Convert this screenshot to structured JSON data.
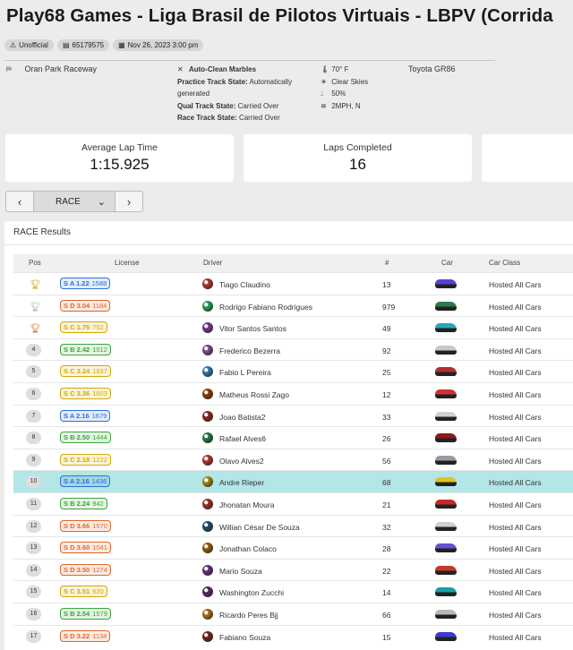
{
  "title": "Play68 Games - Liga Brasil de Pilotos Virtuais - LBPV (Corrida",
  "badges": {
    "status": "Unofficial",
    "id": "65179575",
    "date": "Nov 26, 2023 3:00 pm"
  },
  "info": {
    "track": "Oran Park Raceway",
    "marbles": "Auto-Clean Marbles",
    "practice_label": "Practice Track State:",
    "practice_value": "Automatically generated",
    "practice_value_l1": "Automatically",
    "practice_value_l2": "generated",
    "qual_label": "Qual Track State:",
    "qual_value": "Carried Over",
    "race_label": "Race Track State:",
    "race_value": "Carried Over",
    "temp": "70° F",
    "sky": "Clear Skies",
    "humidity": "50%",
    "wind": "2MPH, N",
    "car": "Toyota GR86"
  },
  "cards": {
    "avg_label": "Average Lap Time",
    "avg_value": "1:15.925",
    "laps_label": "Laps Completed",
    "laps_value": "16"
  },
  "nav": {
    "prev": "<",
    "session": "RACE",
    "next": ">"
  },
  "results": {
    "title": "RACE Results",
    "columns": {
      "pos": "Pos",
      "license": "License",
      "driver": "Driver",
      "num": "#",
      "car": "Car",
      "car_class": "Car Class"
    },
    "rows": [
      {
        "pos": "1",
        "trophy": "gold",
        "lic_class": "A 1.22",
        "lic_ir": "1588",
        "lic_color": "#2e6fd8",
        "driver": "Tiago Claudino",
        "num": "13",
        "car_color": "#5a3fd8",
        "avatar": "#c0392b",
        "car_class": "Hosted All Cars"
      },
      {
        "pos": "2",
        "trophy": "silver",
        "lic_class": "D 3.04",
        "lic_ir": "1184",
        "lic_color": "#e0662a",
        "driver": "Rodrigo Fabiano Rodrigues",
        "num": "979",
        "car_color": "#2f7a4a",
        "avatar": "#27ae60",
        "car_class": "Hosted All Cars"
      },
      {
        "pos": "3",
        "trophy": "bronze",
        "lic_class": "C 1.75",
        "lic_ir": "752",
        "lic_color": "#d4a800",
        "driver": "Vitor Santos Santos",
        "num": "49",
        "car_color": "#2aa6b8",
        "avatar": "#7d3c98",
        "car_class": "Hosted All Cars"
      },
      {
        "pos": "4",
        "trophy": "",
        "lic_class": "B 2.42",
        "lic_ir": "1512",
        "lic_color": "#3aa63a",
        "driver": "Frederico Bezerra",
        "num": "92",
        "car_color": "#c8c8c8",
        "avatar": "#884ea0",
        "car_class": "Hosted All Cars"
      },
      {
        "pos": "5",
        "trophy": "",
        "lic_class": "C 3.24",
        "lic_ir": "1937",
        "lic_color": "#d4a800",
        "driver": "Fabio L Pereira",
        "num": "25",
        "car_color": "#b03030",
        "avatar": "#2e86c1",
        "car_class": "Hosted All Cars"
      },
      {
        "pos": "6",
        "trophy": "",
        "lic_class": "C 3.36",
        "lic_ir": "1603",
        "lic_color": "#d4a800",
        "driver": "Matheus Rossi Zago",
        "num": "12",
        "car_color": "#c33",
        "avatar": "#a04000",
        "car_class": "Hosted All Cars"
      },
      {
        "pos": "7",
        "trophy": "",
        "lic_class": "A 2.16",
        "lic_ir": "1679",
        "lic_color": "#2e6fd8",
        "driver": "Joao Batista2",
        "num": "33",
        "car_color": "#cfcfd8",
        "avatar": "#922b21",
        "car_class": "Hosted All Cars"
      },
      {
        "pos": "8",
        "trophy": "",
        "lic_class": "B 2.50",
        "lic_ir": "1444",
        "lic_color": "#3aa63a",
        "driver": "Rafael Alves6",
        "num": "26",
        "car_color": "#8a1b1b",
        "avatar": "#1e8449",
        "car_class": "Hosted All Cars"
      },
      {
        "pos": "9",
        "trophy": "",
        "lic_class": "C 2.18",
        "lic_ir": "1222",
        "lic_color": "#d4a800",
        "driver": "Olavo Alves2",
        "num": "56",
        "car_color": "#9a9aa8",
        "avatar": "#c0392b",
        "car_class": "Hosted All Cars"
      },
      {
        "pos": "10",
        "trophy": "",
        "lic_class": "A 2.16",
        "lic_ir": "1436",
        "lic_color": "#2e6fd8",
        "driver": "Andre Rieper",
        "num": "68",
        "car_color": "#e2c21a",
        "avatar": "#b7950b",
        "car_class": "Hosted All Cars",
        "highlight": true
      },
      {
        "pos": "11",
        "trophy": "",
        "lic_class": "B 2.24",
        "lic_ir": "942",
        "lic_color": "#3aa63a",
        "driver": "Jhonatan Moura",
        "num": "21",
        "car_color": "#c62828",
        "avatar": "#a93226",
        "car_class": "Hosted All Cars"
      },
      {
        "pos": "12",
        "trophy": "",
        "lic_class": "D 3.66",
        "lic_ir": "1570",
        "lic_color": "#e0662a",
        "driver": "Willian César De Souza",
        "num": "32",
        "car_color": "#d0d0d0",
        "avatar": "#1a5276",
        "car_class": "Hosted All Cars"
      },
      {
        "pos": "13",
        "trophy": "",
        "lic_class": "D 3.60",
        "lic_ir": "1041",
        "lic_color": "#e0662a",
        "driver": "Jonathan Colaco",
        "num": "28",
        "car_color": "#6a4fd0",
        "avatar": "#9c640c",
        "car_class": "Hosted All Cars"
      },
      {
        "pos": "14",
        "trophy": "",
        "lic_class": "D 3.50",
        "lic_ir": "1274",
        "lic_color": "#e0662a",
        "driver": "Mario Souza",
        "num": "22",
        "car_color": "#c0392b",
        "avatar": "#6c3483",
        "car_class": "Hosted All Cars"
      },
      {
        "pos": "15",
        "trophy": "",
        "lic_class": "C 3.51",
        "lic_ir": "620",
        "lic_color": "#d4a800",
        "driver": "Washington Zucchi",
        "num": "14",
        "car_color": "#1aa0a8",
        "avatar": "#5b2c6f",
        "car_class": "Hosted All Cars"
      },
      {
        "pos": "16",
        "trophy": "",
        "lic_class": "B 2.54",
        "lic_ir": "1579",
        "lic_color": "#3aa63a",
        "driver": "Ricardo Peres Bjj",
        "num": "66",
        "car_color": "#b8b8b8",
        "avatar": "#b9770e",
        "car_class": "Hosted All Cars"
      },
      {
        "pos": "17",
        "trophy": "",
        "lic_class": "D 3.22",
        "lic_ir": "1134",
        "lic_color": "#e0662a",
        "driver": "Fabiano Souza",
        "num": "15",
        "car_color": "#3a3acf",
        "avatar": "#7b241c",
        "car_class": "Hosted All Cars"
      }
    ]
  }
}
